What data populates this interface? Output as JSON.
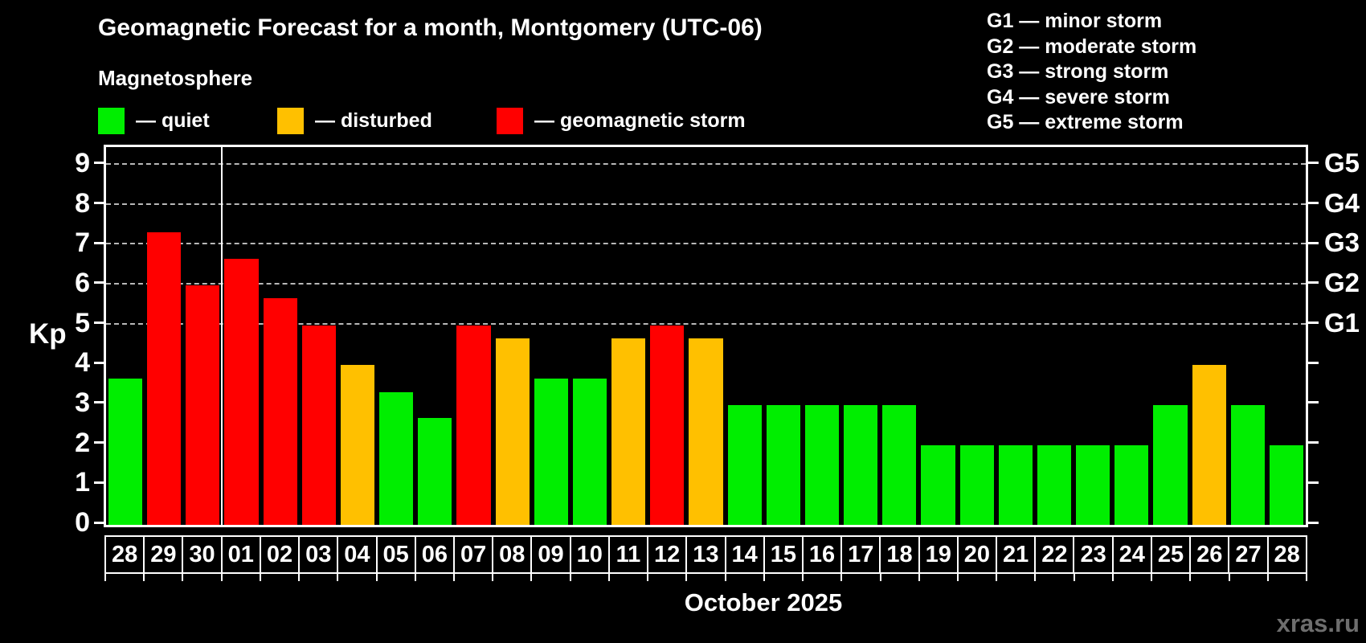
{
  "header": {
    "title": "Geomagnetic Forecast for a month, Montgomery (UTC-06)",
    "subtitle": "Magnetosphere",
    "legend": [
      {
        "key": "quiet",
        "label": "— quiet"
      },
      {
        "key": "disturbed",
        "label": "— disturbed"
      },
      {
        "key": "storm",
        "label": "— geomagnetic storm"
      }
    ],
    "g_legend": [
      "G1 — minor storm",
      "G2 — moderate storm",
      "G3 — strong storm",
      "G4 — severe storm",
      "G5 — extreme storm"
    ]
  },
  "colors": {
    "quiet": "#00ee00",
    "disturbed": "#ffc000",
    "storm": "#ff0000",
    "background": "#000000",
    "text": "#ffffff",
    "gridline": "#b8b8b8",
    "watermark": "#6e6e6e"
  },
  "chart_data": {
    "type": "bar",
    "title": "Geomagnetic Forecast for a month, Montgomery (UTC-06)",
    "ylabel": "Kp",
    "xlabel": "October 2025",
    "ylim": [
      0,
      9.4
    ],
    "grid": "dashed horizontal at Kp 5-9 only",
    "legend_position": "top-left",
    "yticks": [
      0,
      1,
      2,
      3,
      4,
      5,
      6,
      7,
      8,
      9
    ],
    "right_axis": [
      {
        "level": 5,
        "label": "G1"
      },
      {
        "level": 6,
        "label": "G2"
      },
      {
        "level": 7,
        "label": "G3"
      },
      {
        "level": 8,
        "label": "G4"
      },
      {
        "level": 9,
        "label": "G5"
      }
    ],
    "gridline_levels": [
      5,
      6,
      7,
      8,
      9
    ],
    "month_separator_after_index": 2,
    "categories": [
      "28",
      "29",
      "30",
      "01",
      "02",
      "03",
      "04",
      "05",
      "06",
      "07",
      "08",
      "09",
      "10",
      "11",
      "12",
      "13",
      "14",
      "15",
      "16",
      "17",
      "18",
      "19",
      "20",
      "21",
      "22",
      "23",
      "24",
      "25",
      "26",
      "27",
      "28"
    ],
    "values": [
      3.67,
      7.33,
      6,
      6.67,
      5.67,
      5,
      4,
      3.33,
      2.67,
      5,
      4.67,
      3.67,
      3.67,
      4.67,
      5,
      4.67,
      3,
      3,
      3,
      3,
      3,
      2,
      2,
      2,
      2,
      2,
      2,
      3,
      4,
      3,
      2
    ],
    "statuses": [
      "quiet",
      "storm",
      "storm",
      "storm",
      "storm",
      "storm",
      "disturbed",
      "quiet",
      "quiet",
      "storm",
      "disturbed",
      "quiet",
      "quiet",
      "disturbed",
      "storm",
      "disturbed",
      "quiet",
      "quiet",
      "quiet",
      "quiet",
      "quiet",
      "quiet",
      "quiet",
      "quiet",
      "quiet",
      "quiet",
      "quiet",
      "quiet",
      "disturbed",
      "quiet",
      "quiet"
    ]
  },
  "watermark": "xras.ru"
}
